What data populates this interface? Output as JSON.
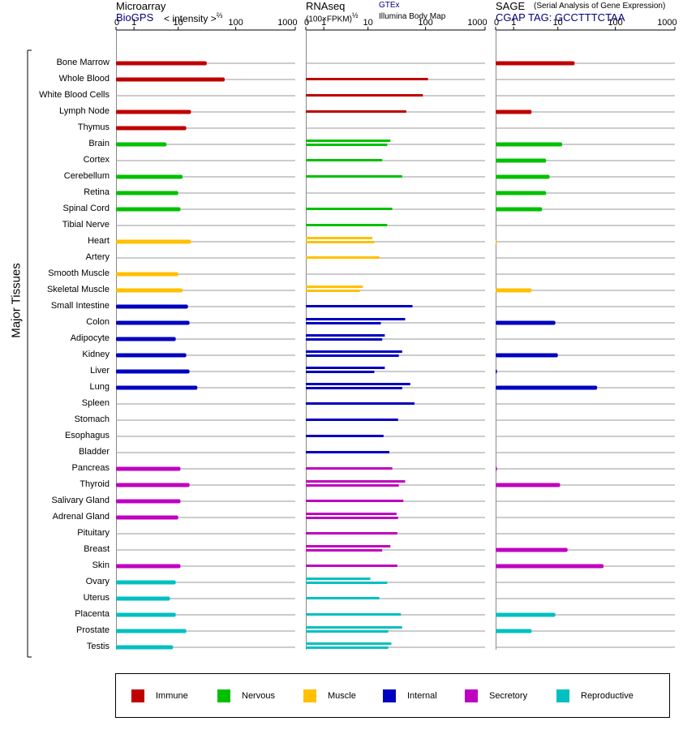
{
  "panels": {
    "microarray": {
      "title": "Microarray",
      "subtitle": "BioGPS",
      "scale_label": "< intensity >",
      "scale_exp": "⅔"
    },
    "rnaseq": {
      "title": "RNAseq",
      "scale_label": "(100×FPKM)",
      "scale_exp": "½",
      "source1": "GTEx",
      "source2": "Illumina Body Map"
    },
    "sage": {
      "title": "SAGE",
      "title_note": "(Serial Analysis of Gene Expression)",
      "subtitle": "CGAP TAG: GCCTTTCTAA"
    }
  },
  "axis_ticks": [
    "0",
    "1",
    "10",
    "100",
    "1000"
  ],
  "y_axis_label": "Major Tissues",
  "legend": [
    {
      "label": "Immune",
      "color": "#c00000"
    },
    {
      "label": "Nervous",
      "color": "#00c000"
    },
    {
      "label": "Muscle",
      "color": "#ffc000"
    },
    {
      "label": "Internal",
      "color": "#0000c0"
    },
    {
      "label": "Secretory",
      "color": "#c000c0"
    },
    {
      "label": "Reproductive",
      "color": "#00c0c0"
    }
  ],
  "chart_data": {
    "type": "bar",
    "orientation": "horizontal",
    "scale": "log1p, axis from 0 to 1000",
    "categories": [
      "Bone Marrow",
      "Whole Blood",
      "White Blood Cells",
      "Lymph Node",
      "Thymus",
      "Brain",
      "Cortex",
      "Cerebellum",
      "Retina",
      "Spinal Cord",
      "Tibial Nerve",
      "Heart",
      "Artery",
      "Smooth Muscle",
      "Skeletal Muscle",
      "Small Intestine",
      "Colon",
      "Adipocyte",
      "Kidney",
      "Liver",
      "Lung",
      "Spleen",
      "Stomach",
      "Esophagus",
      "Bladder",
      "Pancreas",
      "Thyroid",
      "Salivary Gland",
      "Adrenal Gland",
      "Pituitary",
      "Breast",
      "Skin",
      "Ovary",
      "Uterus",
      "Placenta",
      "Prostate",
      "Testis"
    ],
    "category_groups": [
      "Immune",
      "Immune",
      "Immune",
      "Immune",
      "Immune",
      "Nervous",
      "Nervous",
      "Nervous",
      "Nervous",
      "Nervous",
      "Nervous",
      "Muscle",
      "Muscle",
      "Muscle",
      "Muscle",
      "Internal",
      "Internal",
      "Internal",
      "Internal",
      "Internal",
      "Internal",
      "Internal",
      "Internal",
      "Internal",
      "Internal",
      "Secretory",
      "Secretory",
      "Secretory",
      "Secretory",
      "Secretory",
      "Secretory",
      "Secretory",
      "Reproductive",
      "Reproductive",
      "Reproductive",
      "Reproductive",
      "Reproductive"
    ],
    "series": [
      {
        "name": "Microarray",
        "values": [
          [
            32
          ],
          [
            65
          ],
          [],
          [
            17
          ],
          [
            14
          ],
          [
            6
          ],
          [],
          [
            12
          ],
          [
            10
          ],
          [
            11
          ],
          [],
          [
            17
          ],
          [],
          [
            10
          ],
          [
            12
          ],
          [
            15
          ],
          [
            16
          ],
          [
            9
          ],
          [
            14
          ],
          [
            16
          ],
          [
            22
          ],
          [],
          [],
          [],
          [],
          [
            11
          ],
          [
            16
          ],
          [
            11
          ],
          [
            10
          ],
          [],
          [],
          [
            11
          ],
          [
            9
          ],
          [
            7
          ],
          [
            9
          ],
          [
            14
          ],
          [
            8
          ]
        ]
      },
      {
        "name": "RNAseq GTEx",
        "values": [
          [],
          [
            110
          ],
          [
            90
          ],
          [
            47
          ],
          [],
          [
            25
          ],
          [
            18
          ],
          [
            40
          ],
          [],
          [
            27
          ],
          [
            22
          ],
          [
            12
          ],
          [
            16
          ],
          [],
          [
            8
          ],
          [
            60
          ],
          [
            45
          ],
          [
            20
          ],
          [
            40
          ],
          [
            20
          ],
          [
            55
          ],
          [
            65
          ],
          [
            34
          ],
          [
            19
          ],
          [
            24
          ],
          [
            27
          ],
          [
            45
          ],
          [
            42
          ],
          [
            32
          ],
          [
            33
          ],
          [
            25
          ],
          [
            33
          ],
          [
            11
          ],
          [
            16
          ],
          [
            38
          ],
          [
            40
          ],
          [
            26
          ]
        ]
      },
      {
        "name": "RNAseq Illumina Body Map",
        "values": [
          [],
          [],
          [],
          [],
          [],
          [
            22
          ],
          [],
          [],
          [],
          [],
          [],
          [
            13
          ],
          [],
          [],
          [
            7
          ],
          [],
          [
            17
          ],
          [
            18
          ],
          [
            35
          ],
          [
            13
          ],
          [
            40
          ],
          [],
          [],
          [],
          [],
          [],
          [
            35
          ],
          [],
          [
            34
          ],
          [],
          [
            18
          ],
          [],
          [
            22
          ],
          [],
          [],
          [
            23
          ],
          [
            23
          ]
        ]
      },
      {
        "name": "SAGE",
        "values": [
          [
            20
          ],
          [],
          [],
          [
            3
          ],
          [],
          [
            12
          ],
          [
            6
          ],
          [
            7
          ],
          [
            6
          ],
          [
            5
          ],
          [],
          [
            0.05
          ],
          [],
          [],
          [
            3
          ],
          [],
          [
            9
          ],
          [],
          [
            10
          ],
          [
            0.05
          ],
          [
            49
          ],
          [],
          [],
          [],
          [],
          [
            0.05
          ],
          [
            11
          ],
          [],
          [],
          [],
          [
            15
          ],
          [
            63
          ],
          [],
          [],
          [
            9
          ],
          [
            3
          ],
          []
        ]
      }
    ]
  }
}
